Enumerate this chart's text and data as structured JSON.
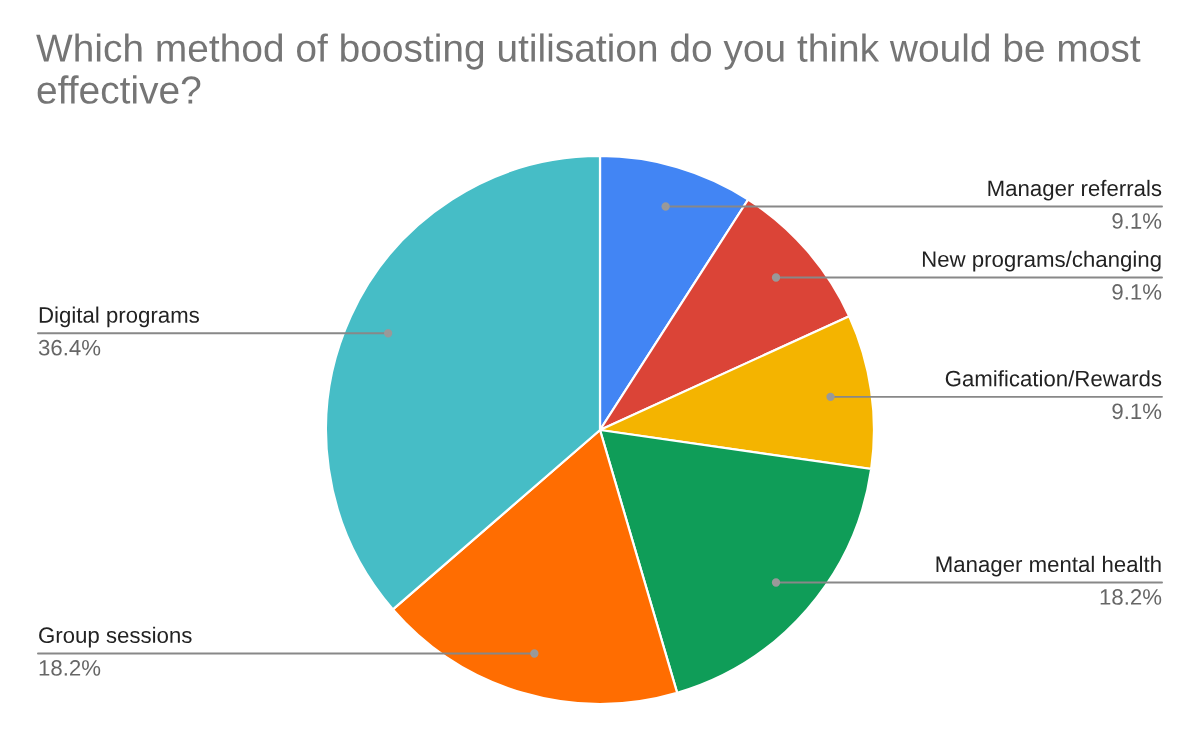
{
  "chart_data": {
    "type": "pie",
    "title": "Which method of boosting utilisation do you think would be most effective?",
    "categories": [
      "Manager referrals",
      "New programs/changing",
      "Gamification/Rewards",
      "Manager mental health",
      "Group sessions",
      "Digital programs"
    ],
    "values": [
      9.1,
      9.1,
      9.1,
      18.2,
      18.2,
      36.4
    ],
    "value_labels": [
      "9.1%",
      "9.1%",
      "9.1%",
      "18.2%",
      "18.2%",
      "36.4%"
    ],
    "colors": [
      "#4285f4",
      "#db4437",
      "#f4b400",
      "#0f9d58",
      "#ff6d01",
      "#46bdc6"
    ],
    "legend": false
  }
}
